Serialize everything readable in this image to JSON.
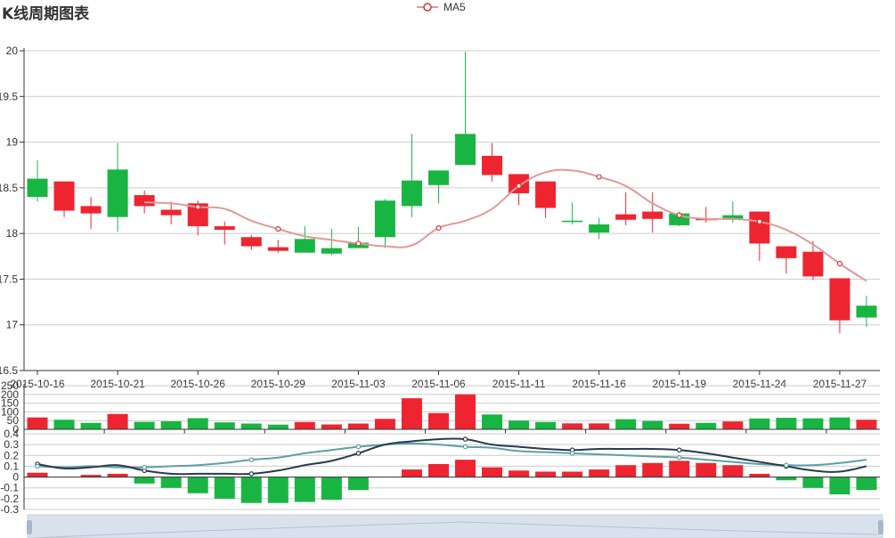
{
  "chart_data": {
    "type": "candlestick",
    "title": "K线周期图表",
    "legend": [
      "MA5"
    ],
    "legend_position": "top-center",
    "candles": [
      {
        "x": "2015-10-16",
        "open": 18.6,
        "close": 18.4,
        "low": 18.35,
        "high": 18.8
      },
      {
        "x": "2015-10-19",
        "open": 18.25,
        "close": 18.57,
        "low": 18.18,
        "high": 18.57
      },
      {
        "x": "2015-10-20",
        "open": 18.22,
        "close": 18.3,
        "low": 18.05,
        "high": 18.4
      },
      {
        "x": "2015-10-21",
        "open": 18.7,
        "close": 18.18,
        "low": 18.02,
        "high": 18.99
      },
      {
        "x": "2015-10-22",
        "open": 18.3,
        "close": 18.42,
        "low": 18.22,
        "high": 18.47
      },
      {
        "x": "2015-10-23",
        "open": 18.2,
        "close": 18.26,
        "low": 18.1,
        "high": 18.35
      },
      {
        "x": "2015-10-26",
        "open": 18.08,
        "close": 18.33,
        "low": 17.98,
        "high": 18.36
      },
      {
        "x": "2015-10-27",
        "open": 18.04,
        "close": 18.08,
        "low": 17.88,
        "high": 18.13
      },
      {
        "x": "2015-10-28",
        "open": 17.86,
        "close": 17.96,
        "low": 17.82,
        "high": 17.98
      },
      {
        "x": "2015-10-29",
        "open": 17.81,
        "close": 17.85,
        "low": 17.79,
        "high": 17.93
      },
      {
        "x": "2015-10-30",
        "open": 17.94,
        "close": 17.79,
        "low": 17.79,
        "high": 18.08
      },
      {
        "x": "2015-11-02",
        "open": 17.84,
        "close": 17.78,
        "low": 17.76,
        "high": 18.05
      },
      {
        "x": "2015-11-03",
        "open": 17.9,
        "close": 17.84,
        "low": 17.84,
        "high": 18.07
      },
      {
        "x": "2015-11-04",
        "open": 18.36,
        "close": 17.96,
        "low": 17.84,
        "high": 18.38
      },
      {
        "x": "2015-11-05",
        "open": 18.58,
        "close": 18.3,
        "low": 18.18,
        "high": 19.09
      },
      {
        "x": "2015-11-06",
        "open": 18.69,
        "close": 18.53,
        "low": 18.33,
        "high": 18.69
      },
      {
        "x": "2015-11-09",
        "open": 19.09,
        "close": 18.75,
        "low": 18.75,
        "high": 19.99
      },
      {
        "x": "2015-11-10",
        "open": 18.64,
        "close": 18.85,
        "low": 18.57,
        "high": 18.99
      },
      {
        "x": "2015-11-11",
        "open": 18.44,
        "close": 18.65,
        "low": 18.31,
        "high": 18.65
      },
      {
        "x": "2015-11-12",
        "open": 18.28,
        "close": 18.57,
        "low": 18.17,
        "high": 18.57
      },
      {
        "x": "2015-11-13",
        "open": 18.14,
        "close": 18.13,
        "low": 18.1,
        "high": 18.34
      },
      {
        "x": "2015-11-16",
        "open": 18.1,
        "close": 18.01,
        "low": 17.94,
        "high": 18.17
      },
      {
        "x": "2015-11-17",
        "open": 18.15,
        "close": 18.21,
        "low": 18.09,
        "high": 18.45
      },
      {
        "x": "2015-11-18",
        "open": 18.16,
        "close": 18.24,
        "low": 18.01,
        "high": 18.45
      },
      {
        "x": "2015-11-19",
        "open": 18.22,
        "close": 18.09,
        "low": 18.08,
        "high": 18.24
      },
      {
        "x": "2015-11-20",
        "open": 18.15,
        "close": 18.16,
        "low": 18.12,
        "high": 18.29
      },
      {
        "x": "2015-11-23",
        "open": 18.2,
        "close": 18.15,
        "low": 18.12,
        "high": 18.35
      },
      {
        "x": "2015-11-24",
        "open": 17.89,
        "close": 18.24,
        "low": 17.7,
        "high": 18.24
      },
      {
        "x": "2015-11-25",
        "open": 17.73,
        "close": 17.86,
        "low": 17.56,
        "high": 17.86
      },
      {
        "x": "2015-11-26",
        "open": 17.53,
        "close": 17.8,
        "low": 17.49,
        "high": 17.92
      },
      {
        "x": "2015-11-27",
        "open": 17.05,
        "close": 17.51,
        "low": 16.91,
        "high": 17.51
      },
      {
        "x": "2015-11-30",
        "open": 17.21,
        "close": 17.08,
        "low": 16.98,
        "high": 17.32
      }
    ],
    "ma5": [
      null,
      null,
      null,
      null,
      18.34,
      18.33,
      18.29,
      18.27,
      18.14,
      18.05,
      17.97,
      17.93,
      17.89,
      17.86,
      17.87,
      18.06,
      18.14,
      18.27,
      18.52,
      18.67,
      18.69,
      18.62,
      18.52,
      18.33,
      18.2,
      18.16,
      18.16,
      18.13,
      18.04,
      17.88,
      17.67,
      17.48
    ],
    "volume": [
      68,
      55,
      37,
      88,
      43,
      46,
      64,
      40,
      33,
      27,
      42,
      28,
      33,
      60,
      178,
      93,
      200,
      85,
      50,
      42,
      34,
      34,
      58,
      48,
      32,
      37,
      45,
      62,
      66,
      63,
      68,
      55
    ],
    "volume_up": [
      true,
      false,
      false,
      true,
      false,
      false,
      false,
      false,
      false,
      false,
      true,
      true,
      true,
      true,
      true,
      true,
      true,
      false,
      false,
      false,
      true,
      true,
      false,
      false,
      true,
      false,
      true,
      false,
      false,
      false,
      false,
      true
    ],
    "macd_dif": [
      0.12,
      0.08,
      0.09,
      0.11,
      0.06,
      0.03,
      0.03,
      0.03,
      0.03,
      0.06,
      0.11,
      0.15,
      0.22,
      0.3,
      0.33,
      0.35,
      0.35,
      0.3,
      0.28,
      0.26,
      0.25,
      0.26,
      0.26,
      0.26,
      0.25,
      0.22,
      0.18,
      0.14,
      0.1,
      0.06,
      0.05,
      0.1
    ],
    "macd_dea": [
      0.1,
      0.09,
      0.1,
      0.09,
      0.09,
      0.1,
      0.11,
      0.13,
      0.16,
      0.18,
      0.22,
      0.25,
      0.28,
      0.3,
      0.31,
      0.3,
      0.28,
      0.27,
      0.24,
      0.23,
      0.22,
      0.21,
      0.2,
      0.19,
      0.18,
      0.16,
      0.14,
      0.12,
      0.11,
      0.11,
      0.13,
      0.16
    ],
    "macd_hist": [
      0.04,
      0.0,
      0.02,
      0.03,
      -0.06,
      -0.1,
      -0.15,
      -0.2,
      -0.24,
      -0.24,
      -0.23,
      -0.21,
      -0.12,
      0.0,
      0.07,
      0.12,
      0.16,
      0.09,
      0.06,
      0.05,
      0.05,
      0.07,
      0.11,
      0.13,
      0.15,
      0.13,
      0.11,
      0.03,
      -0.03,
      -0.1,
      -0.16,
      -0.12
    ],
    "x_labels": [
      "2015-10-16",
      "2015-10-21",
      "2015-10-26",
      "2015-10-29",
      "2015-11-03",
      "2015-11-06",
      "2015-11-11",
      "2015-11-16",
      "2015-11-19",
      "2015-11-24",
      "2015-11-27"
    ],
    "x_label_index": [
      0,
      3,
      6,
      9,
      12,
      15,
      18,
      21,
      24,
      27,
      30
    ],
    "price_axis": {
      "min": 16.5,
      "max": 20,
      "ticks": [
        "20",
        "19.5",
        "19",
        "18.5",
        "18",
        "17.5",
        "17",
        "16.5"
      ]
    },
    "volume_axis": {
      "min": 0,
      "max": 250,
      "ticks": [
        "250",
        "200",
        "150",
        "100",
        "50",
        "0"
      ]
    },
    "macd_axis": {
      "min": -0.3,
      "max": 0.4,
      "ticks": [
        "0.4",
        "0.3",
        "0.2",
        "0.1",
        "0",
        "-0.1",
        "-0.2",
        "-0.3"
      ]
    },
    "grid": true,
    "data_zoom_slider": true,
    "colors": {
      "up": "#ee2530",
      "down": "#18b542",
      "ma5": "#e09a98",
      "dif": "#2a3a4e",
      "dea": "#5ea0a6",
      "axis": "#333333",
      "gridline": "#cccccc"
    }
  }
}
